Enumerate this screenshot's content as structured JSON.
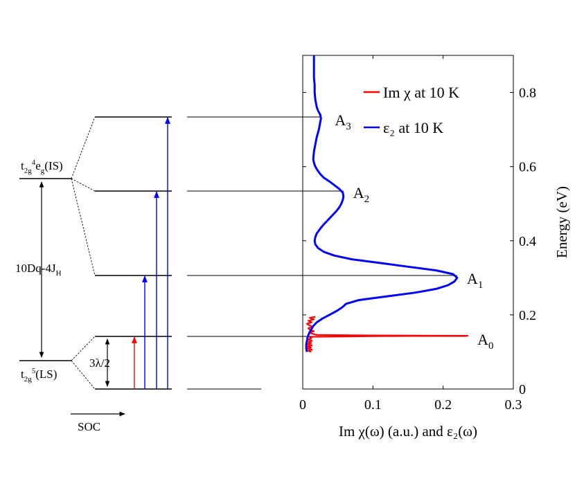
{
  "chart_data": {
    "type": "line",
    "xlabel": "Im χ(ω) (a.u.) and ε₂(ω)",
    "ylabel": "Energy (eV)",
    "xlim": [
      0,
      0.3
    ],
    "ylim": [
      0,
      0.9
    ],
    "x_ticks": [
      0,
      0.1,
      0.2,
      0.3
    ],
    "x_tick_labels": [
      "0",
      "0.1",
      "0.2",
      "0.3"
    ],
    "y_ticks": [
      0,
      0.2,
      0.4,
      0.6,
      0.8
    ],
    "y_tick_labels": [
      "0",
      "0.2",
      "0.4",
      "0.6",
      "0.8"
    ],
    "grid": false,
    "legend_position": "top-right",
    "series": [
      {
        "name": "Im χ at 10 K",
        "color": "#ff0000",
        "points": [
          [
            0.012,
            0.1
          ],
          [
            0.008,
            0.103
          ],
          [
            0.013,
            0.106
          ],
          [
            0.006,
            0.109
          ],
          [
            0.012,
            0.112
          ],
          [
            0.007,
            0.115
          ],
          [
            0.013,
            0.118
          ],
          [
            0.006,
            0.121
          ],
          [
            0.012,
            0.124
          ],
          [
            0.008,
            0.127
          ],
          [
            0.013,
            0.13
          ],
          [
            0.007,
            0.133
          ],
          [
            0.012,
            0.136
          ],
          [
            0.01,
            0.139
          ],
          [
            0.015,
            0.141
          ],
          [
            0.1,
            0.1425
          ],
          [
            0.235,
            0.1435
          ],
          [
            0.1,
            0.1445
          ],
          [
            0.02,
            0.146
          ],
          [
            0.014,
            0.149
          ],
          [
            0.009,
            0.152
          ],
          [
            0.016,
            0.156
          ],
          [
            0.01,
            0.16
          ],
          [
            0.008,
            0.164
          ],
          [
            0.015,
            0.168
          ],
          [
            0.009,
            0.172
          ],
          [
            0.006,
            0.176
          ],
          [
            0.013,
            0.18
          ],
          [
            0.008,
            0.184
          ],
          [
            0.016,
            0.188
          ],
          [
            0.01,
            0.192
          ],
          [
            0.018,
            0.195
          ]
        ]
      },
      {
        "name": "ε₂ at 10 K",
        "color": "#0000ff",
        "points": [
          [
            0.006,
            0.1
          ],
          [
            0.005,
            0.11
          ],
          [
            0.005,
            0.12
          ],
          [
            0.006,
            0.13
          ],
          [
            0.007,
            0.14
          ],
          [
            0.009,
            0.15
          ],
          [
            0.012,
            0.16
          ],
          [
            0.015,
            0.17
          ],
          [
            0.02,
            0.18
          ],
          [
            0.028,
            0.19
          ],
          [
            0.038,
            0.2
          ],
          [
            0.048,
            0.21
          ],
          [
            0.056,
            0.22
          ],
          [
            0.062,
            0.23
          ],
          [
            0.08,
            0.24
          ],
          [
            0.12,
            0.25
          ],
          [
            0.16,
            0.26
          ],
          [
            0.19,
            0.27
          ],
          [
            0.207,
            0.28
          ],
          [
            0.216,
            0.29
          ],
          [
            0.22,
            0.3
          ],
          [
            0.214,
            0.31
          ],
          [
            0.19,
            0.32
          ],
          [
            0.15,
            0.33
          ],
          [
            0.11,
            0.34
          ],
          [
            0.07,
            0.35
          ],
          [
            0.045,
            0.36
          ],
          [
            0.03,
            0.37
          ],
          [
            0.022,
            0.38
          ],
          [
            0.018,
            0.39
          ],
          [
            0.017,
            0.4
          ],
          [
            0.018,
            0.41
          ],
          [
            0.02,
            0.42
          ],
          [
            0.024,
            0.43
          ],
          [
            0.028,
            0.44
          ],
          [
            0.033,
            0.45
          ],
          [
            0.038,
            0.46
          ],
          [
            0.043,
            0.47
          ],
          [
            0.048,
            0.48
          ],
          [
            0.052,
            0.49
          ],
          [
            0.055,
            0.5
          ],
          [
            0.057,
            0.51
          ],
          [
            0.058,
            0.52
          ],
          [
            0.057,
            0.53
          ],
          [
            0.052,
            0.54
          ],
          [
            0.045,
            0.55
          ],
          [
            0.038,
            0.56
          ],
          [
            0.03,
            0.57
          ],
          [
            0.025,
            0.58
          ],
          [
            0.021,
            0.59
          ],
          [
            0.018,
            0.6
          ],
          [
            0.016,
            0.61
          ],
          [
            0.015,
            0.62
          ],
          [
            0.016,
            0.64
          ],
          [
            0.018,
            0.66
          ],
          [
            0.02,
            0.68
          ],
          [
            0.023,
            0.7
          ],
          [
            0.025,
            0.72
          ],
          [
            0.026,
            0.73
          ],
          [
            0.025,
            0.74
          ],
          [
            0.022,
            0.75
          ],
          [
            0.02,
            0.76
          ],
          [
            0.018,
            0.78
          ],
          [
            0.017,
            0.8
          ],
          [
            0.017,
            0.82
          ],
          [
            0.016,
            0.84
          ],
          [
            0.016,
            0.86
          ],
          [
            0.016,
            0.88
          ],
          [
            0.016,
            0.9
          ]
        ]
      }
    ],
    "peaks": [
      {
        "label": "A",
        "sub": "0",
        "energy": 0.1435,
        "x": 0.235
      },
      {
        "label": "A",
        "sub": "1",
        "energy": 0.3,
        "x": 0.22
      },
      {
        "label": "A",
        "sub": "2",
        "energy": 0.525,
        "x": 0.058
      },
      {
        "label": "A",
        "sub": "3",
        "energy": 0.73,
        "x": 0.026
      }
    ]
  },
  "diagram": {
    "levels": {
      "ls": {
        "t": "t",
        "t_sub": "2g",
        "t_sup": "5",
        "rest": "(LS)"
      },
      "is": {
        "t": "t",
        "t_sub": "2g",
        "t_sup": "4",
        "e": "e",
        "e_sub": "g",
        "rest": "(IS)"
      }
    },
    "gap": {
      "main": "10Dq-4J",
      "sub": "H"
    },
    "soc_split": "3λ/2",
    "soc_arrow_label": "SOC",
    "transitions": [
      {
        "to_energy": 0.1435,
        "color": "#ff0000"
      },
      {
        "to_energy": 0.3,
        "color": "#0000ff"
      },
      {
        "to_energy": 0.525,
        "color": "#0000ff"
      },
      {
        "to_energy": 0.73,
        "color": "#0000ff"
      }
    ]
  }
}
